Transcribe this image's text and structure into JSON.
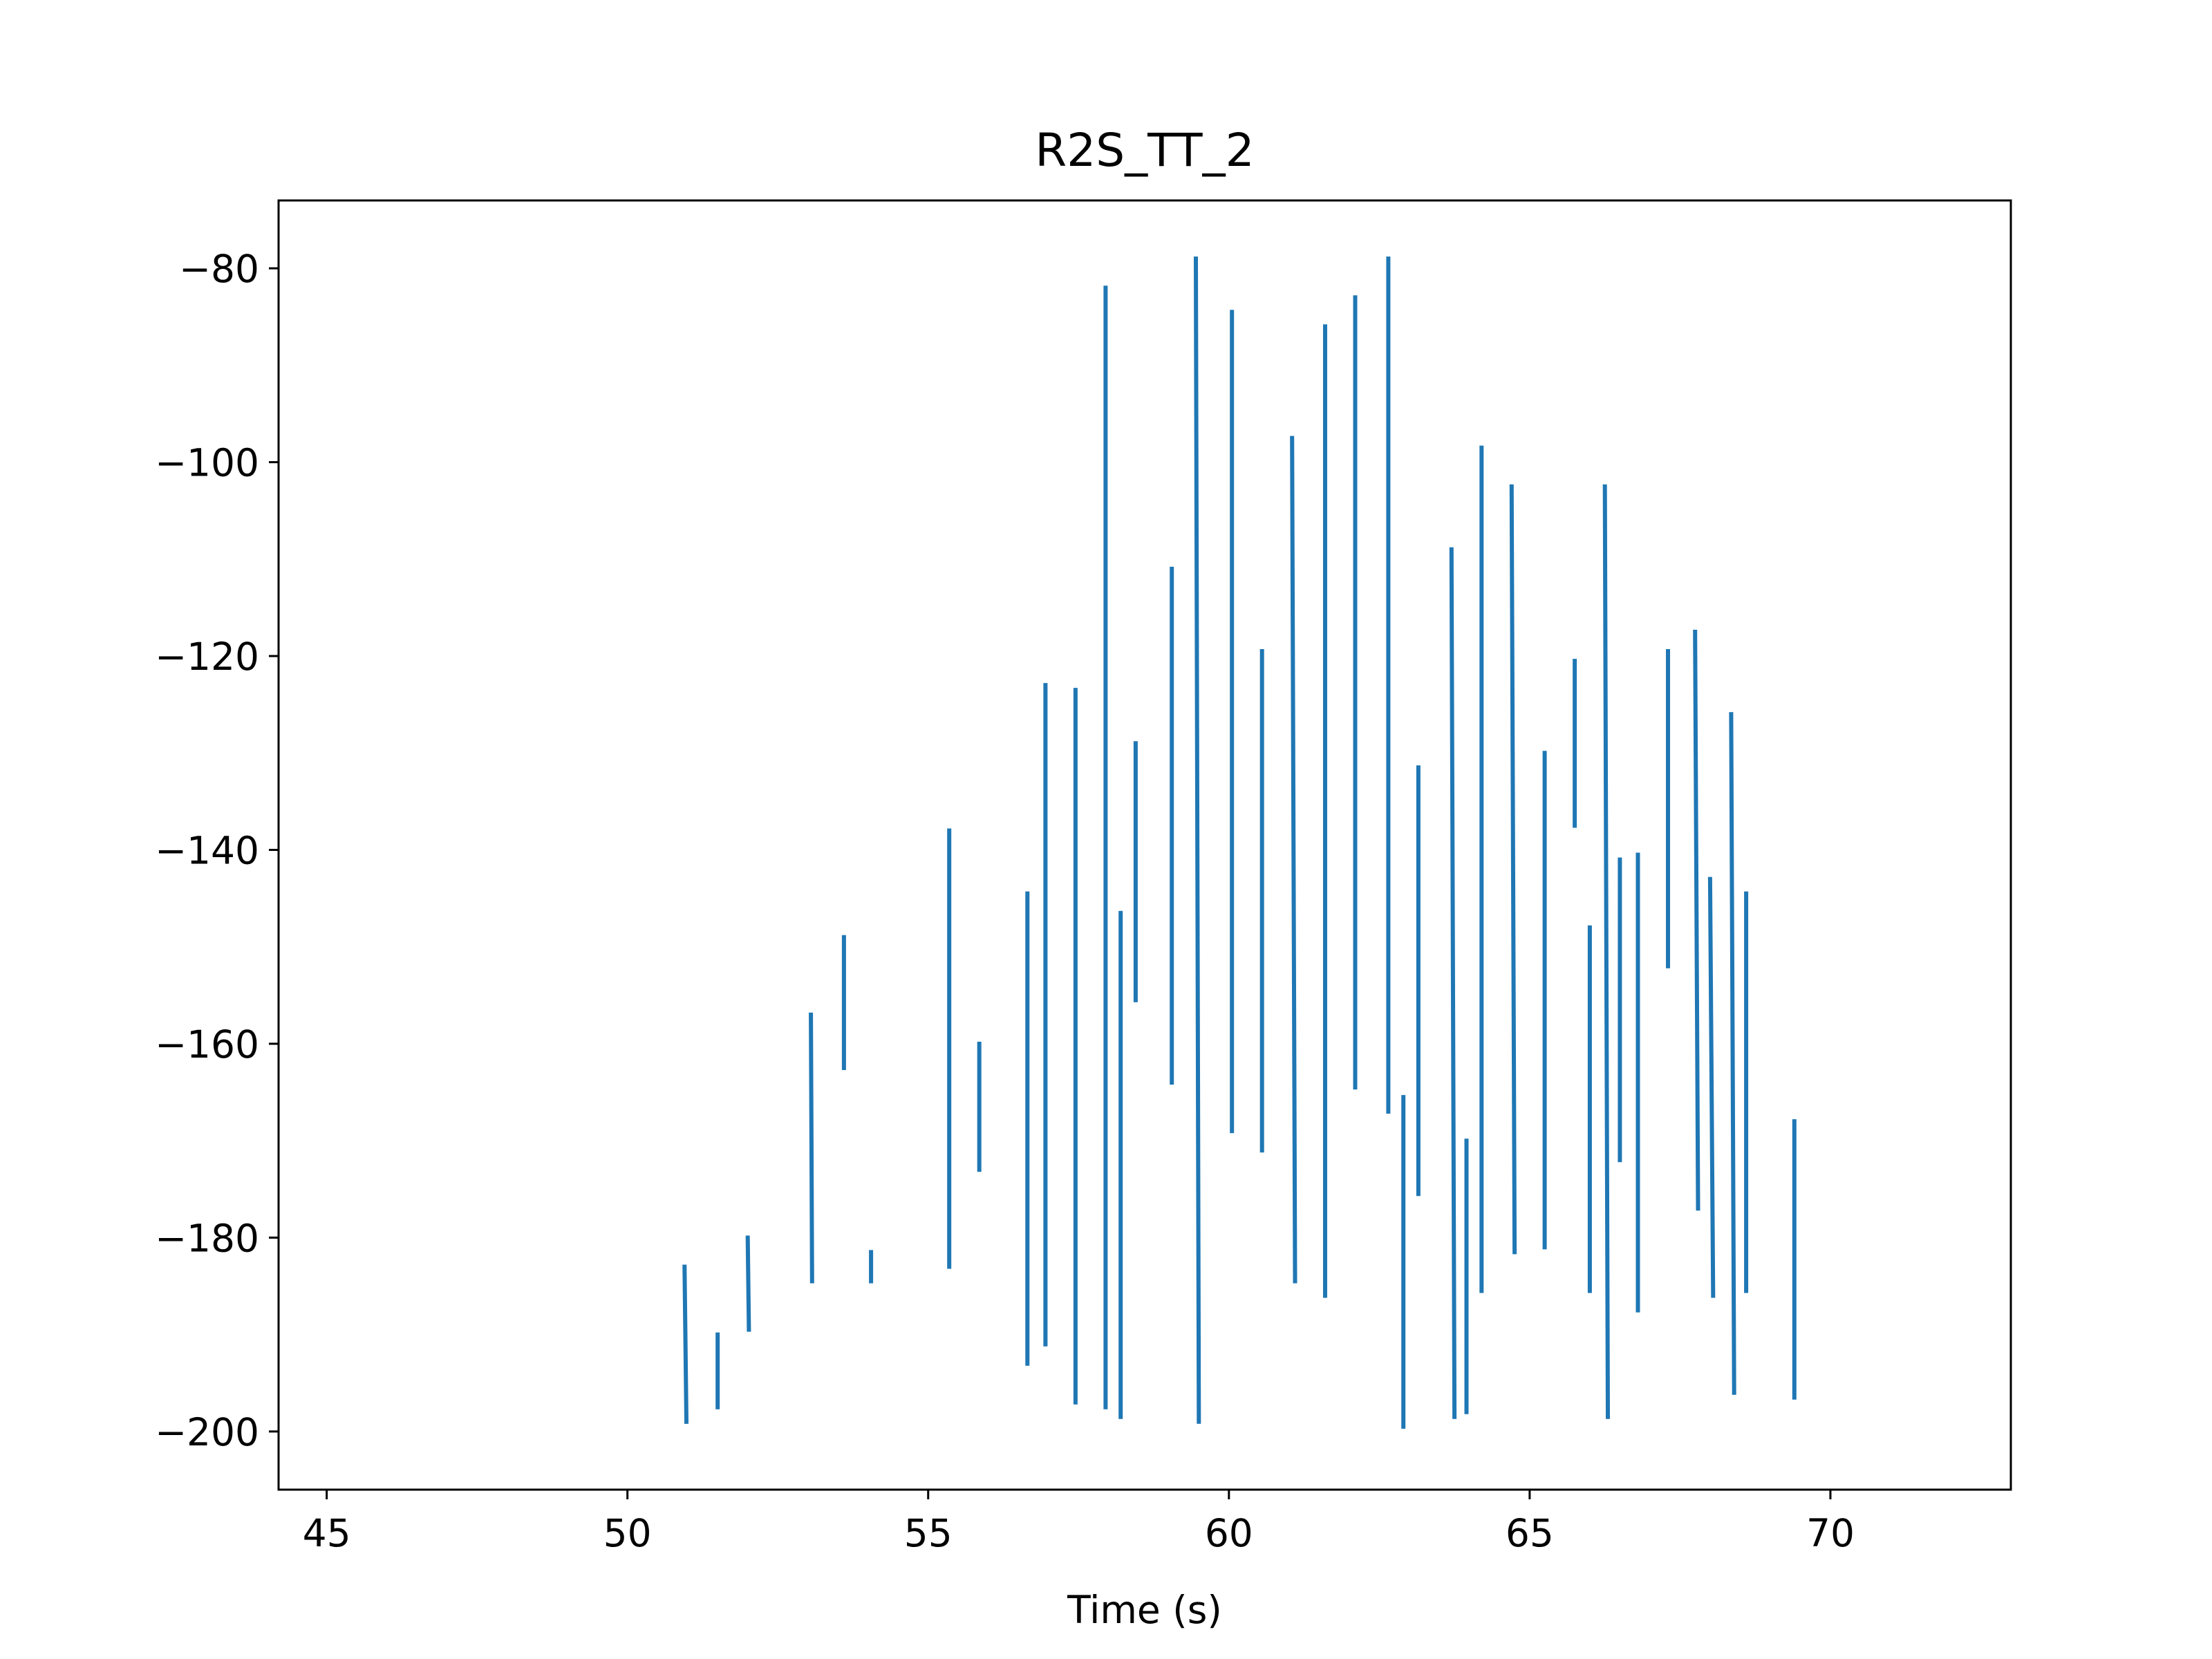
{
  "colors": {
    "series": "#1f77b4",
    "axes": "#000000",
    "background": "#ffffff"
  },
  "chart_data": {
    "type": "line",
    "title": "R2S_TT_2",
    "xlabel": "Time (s)",
    "ylabel": "",
    "xlim": [
      44.2,
      73.0
    ],
    "ylim": [
      -206.0,
      -73.0
    ],
    "xticks": [
      45,
      50,
      55,
      60,
      65,
      70
    ],
    "yticks": [
      -80,
      -100,
      -120,
      -140,
      -160,
      -180,
      -200
    ],
    "xtick_labels": [
      "45",
      "50",
      "55",
      "60",
      "65",
      "70"
    ],
    "ytick_labels": [
      "−80",
      "−100",
      "−120",
      "−140",
      "−160",
      "−180",
      "−200"
    ],
    "grid": false,
    "legend": "none",
    "series": [
      {
        "segments": [
          {
            "x": [
              50.95,
              50.98
            ],
            "y": [
              -183.0,
              -199.0
            ]
          },
          {
            "x": [
              51.5,
              51.5
            ],
            "y": [
              -190.0,
              -197.5
            ]
          },
          {
            "x": [
              52.0,
              52.02
            ],
            "y": [
              -180.0,
              -189.5
            ]
          },
          {
            "x": [
              53.05,
              53.07
            ],
            "y": [
              -157.0,
              -184.5
            ]
          },
          {
            "x": [
              53.6,
              53.6
            ],
            "y": [
              -149.0,
              -162.5
            ]
          },
          {
            "x": [
              54.05,
              54.05
            ],
            "y": [
              -181.5,
              -184.5
            ]
          },
          {
            "x": [
              55.35,
              55.35
            ],
            "y": [
              -138.0,
              -183.0
            ]
          },
          {
            "x": [
              55.85,
              55.85
            ],
            "y": [
              -160.0,
              -173.0
            ]
          },
          {
            "x": [
              56.65,
              56.65
            ],
            "y": [
              -144.5,
              -193.0
            ]
          },
          {
            "x": [
              56.95,
              56.95
            ],
            "y": [
              -123.0,
              -191.0
            ]
          },
          {
            "x": [
              57.45,
              57.45
            ],
            "y": [
              -123.5,
              -197.0
            ]
          },
          {
            "x": [
              57.95,
              57.95
            ],
            "y": [
              -82.0,
              -197.5
            ]
          },
          {
            "x": [
              58.2,
              58.2
            ],
            "y": [
              -146.5,
              -198.5
            ]
          },
          {
            "x": [
              58.45,
              58.45
            ],
            "y": [
              -129.0,
              -155.5
            ]
          },
          {
            "x": [
              59.05,
              59.05
            ],
            "y": [
              -111.0,
              -164.0
            ]
          },
          {
            "x": [
              59.45,
              59.5
            ],
            "y": [
              -79.0,
              -199.0
            ]
          },
          {
            "x": [
              60.05,
              60.05
            ],
            "y": [
              -84.5,
              -169.0
            ]
          },
          {
            "x": [
              60.55,
              60.55
            ],
            "y": [
              -119.5,
              -171.0
            ]
          },
          {
            "x": [
              61.05,
              61.1
            ],
            "y": [
              -97.5,
              -184.5
            ]
          },
          {
            "x": [
              61.6,
              61.6
            ],
            "y": [
              -86.0,
              -186.0
            ]
          },
          {
            "x": [
              62.1,
              62.1
            ],
            "y": [
              -83.0,
              -164.5
            ]
          },
          {
            "x": [
              62.65,
              62.65
            ],
            "y": [
              -79.0,
              -167.0
            ]
          },
          {
            "x": [
              62.9,
              62.9
            ],
            "y": [
              -165.5,
              -199.5
            ]
          },
          {
            "x": [
              63.15,
              63.15
            ],
            "y": [
              -131.5,
              -175.5
            ]
          },
          {
            "x": [
              63.7,
              63.75
            ],
            "y": [
              -109.0,
              -198.5
            ]
          },
          {
            "x": [
              63.95,
              63.95
            ],
            "y": [
              -170.0,
              -198.0
            ]
          },
          {
            "x": [
              64.2,
              64.2
            ],
            "y": [
              -98.5,
              -185.5
            ]
          },
          {
            "x": [
              64.7,
              64.75
            ],
            "y": [
              -102.5,
              -181.5
            ]
          },
          {
            "x": [
              65.25,
              65.25
            ],
            "y": [
              -130.0,
              -181.0
            ]
          },
          {
            "x": [
              65.75,
              65.75
            ],
            "y": [
              -120.5,
              -137.5
            ]
          },
          {
            "x": [
              66.0,
              66.0
            ],
            "y": [
              -148.0,
              -185.5
            ]
          },
          {
            "x": [
              66.25,
              66.3
            ],
            "y": [
              -102.5,
              -198.5
            ]
          },
          {
            "x": [
              66.5,
              66.5
            ],
            "y": [
              -141.0,
              -172.0
            ]
          },
          {
            "x": [
              66.8,
              66.8
            ],
            "y": [
              -140.5,
              -187.5
            ]
          },
          {
            "x": [
              67.3,
              67.3
            ],
            "y": [
              -119.5,
              -152.0
            ]
          },
          {
            "x": [
              67.75,
              67.8
            ],
            "y": [
              -117.5,
              -177.0
            ]
          },
          {
            "x": [
              68.0,
              68.05
            ],
            "y": [
              -143.0,
              -186.0
            ]
          },
          {
            "x": [
              68.35,
              68.4
            ],
            "y": [
              -126.0,
              -196.0
            ]
          },
          {
            "x": [
              68.6,
              68.6
            ],
            "y": [
              -144.5,
              -185.5
            ]
          },
          {
            "x": [
              69.4,
              69.4
            ],
            "y": [
              -168.0,
              -196.5
            ]
          }
        ]
      }
    ]
  }
}
